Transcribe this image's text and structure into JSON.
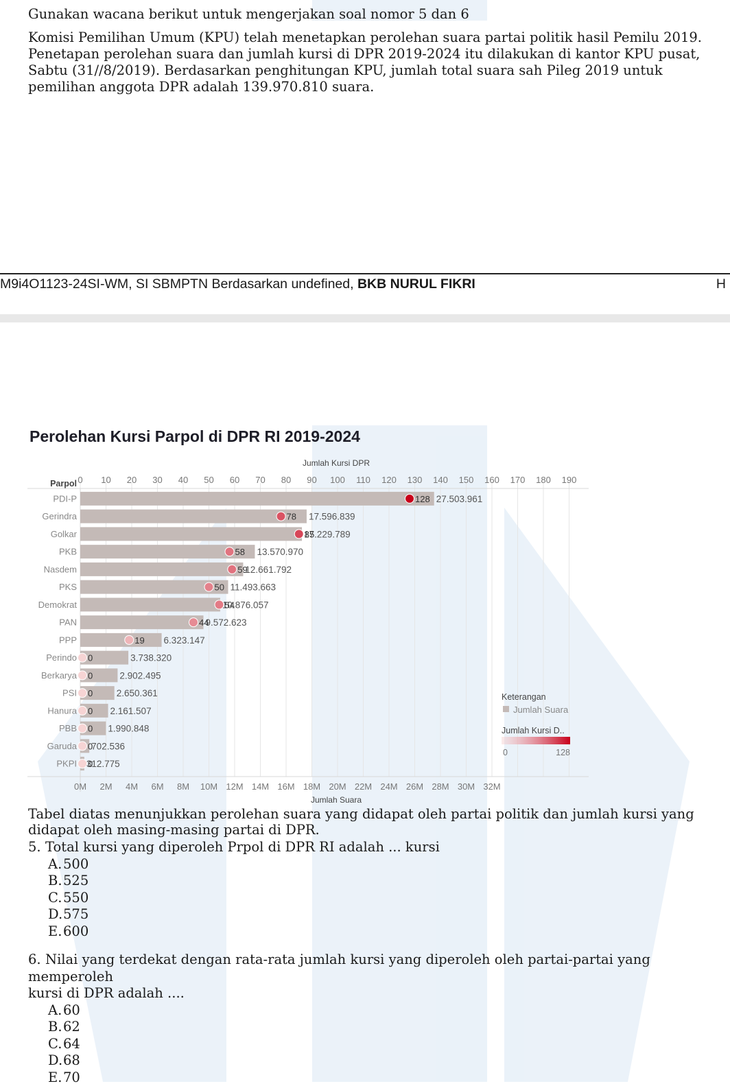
{
  "intro": {
    "lead": "Gunakan wacana berikut untuk mengerjakan soal nomor 5 dan 6",
    "paragraph": "Komisi Pemilihan Umum (KPU) telah menetapkan perolehan suara partai politik hasil Pemilu 2019. Penetapan perolehan suara dan jumlah kursi di DPR 2019-2024 itu dilakukan di kantor KPU pusat, Sabtu (31//8/2019). Berdasarkan penghitungan KPU, jumlah total suara sah Pileg 2019 untuk pemilihan anggota DPR adalah 139.970.810 suara."
  },
  "footer": {
    "code": "M9i4O1123-24SI-WM, SI SBMPTN Berdasarkan undefined, ",
    "org": "BKB NURUL FIKRI",
    "right": "H"
  },
  "chart_data": {
    "type": "bar",
    "title": "Perolehan Kursi Parpol di DPR RI 2019-2024",
    "row_header": "Parpol",
    "x_top_label": "Jumlah Kursi DPR",
    "x_top_ticks": [
      "0",
      "10",
      "20",
      "30",
      "40",
      "50",
      "60",
      "70",
      "80",
      "90",
      "100",
      "110",
      "120",
      "130",
      "140",
      "150",
      "160",
      "170",
      "180",
      "190"
    ],
    "x_top_range": [
      0,
      195
    ],
    "x_bottom_label": "Jumlah Suara",
    "x_bottom_ticks": [
      "0M",
      "2M",
      "4M",
      "6M",
      "8M",
      "10M",
      "12M",
      "14M",
      "16M",
      "18M",
      "20M",
      "22M",
      "24M",
      "26M",
      "28M",
      "30M",
      "32M"
    ],
    "x_bottom_range": [
      0,
      32500000
    ],
    "categories": [
      "PDI-P",
      "Gerindra",
      "Golkar",
      "PKB",
      "Nasdem",
      "PKS",
      "Demokrat",
      "PAN",
      "PPP",
      "Perindo",
      "Berkarya",
      "PSI",
      "Hanura",
      "PBB",
      "Garuda",
      "PKPI"
    ],
    "series": [
      {
        "name": "Jumlah Suara",
        "values": [
          27503961,
          17596839,
          17229789,
          13570970,
          12661792,
          11493663,
          10876057,
          9572623,
          6323147,
          3738320,
          2902495,
          2650361,
          2161507,
          1990848,
          702536,
          312775
        ],
        "labels": [
          "27.503.961",
          "17.596.839",
          "17.229.789",
          "13.570.970",
          "12.661.792",
          "11.493.663",
          "10.876.057",
          "9.572.623",
          "6.323.147",
          "3.738.320",
          "2.902.495",
          "2.650.361",
          "2.161.507",
          "1.990.848",
          "702.536",
          "312.775"
        ]
      },
      {
        "name": "Jumlah Kursi D..",
        "values": [
          128,
          78,
          85,
          58,
          59,
          50,
          54,
          44,
          19,
          0,
          0,
          0,
          0,
          0,
          0,
          0
        ]
      }
    ],
    "legend": {
      "title": "Keterangan",
      "bar_entry": "Jumlah Suara",
      "gradient_title": "Jumlah Kursi D..",
      "gradient_min": "0",
      "gradient_max": "128",
      "position": "bottom-right"
    },
    "colors": {
      "bar": "#c4bab7",
      "dot_low": "#f6d4d4",
      "dot_high": "#c8001a",
      "grid": "#e6e6e6",
      "text": "#555555",
      "title": "#1e1e28"
    }
  },
  "description": "Tabel diatas menunjukkan perolehan suara yang didapat oleh partai politik dan jumlah kursi yang didapat oleh masing-masing partai di DPR.",
  "questions": [
    {
      "number": "5.",
      "stem": "Total kursi yang diperoleh Prpol di DPR RI adalah ... kursi",
      "stem_cont": "",
      "options": [
        {
          "letter": "A.",
          "text": "500"
        },
        {
          "letter": "B.",
          "text": "525"
        },
        {
          "letter": "C.",
          "text": "550"
        },
        {
          "letter": "D.",
          "text": "575"
        },
        {
          "letter": "E.",
          "text": "600"
        }
      ]
    },
    {
      "number": "6.",
      "stem": "Nilai yang terdekat dengan rata-rata jumlah kursi yang diperoleh oleh partai-partai yang memperoleh",
      "stem_cont": "kursi di DPR adalah ....",
      "options": [
        {
          "letter": "A.",
          "text": "60"
        },
        {
          "letter": "B.",
          "text": "62"
        },
        {
          "letter": "C.",
          "text": "64"
        },
        {
          "letter": "D.",
          "text": "68"
        },
        {
          "letter": "E.",
          "text": "70"
        }
      ]
    }
  ]
}
